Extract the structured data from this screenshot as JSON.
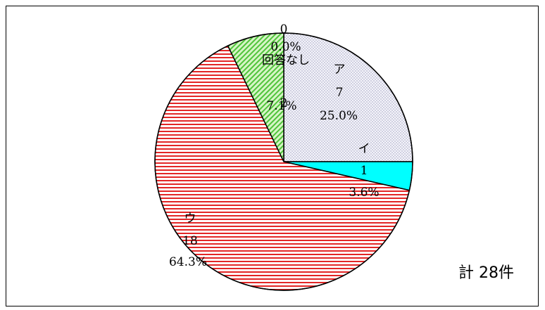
{
  "chart_data": {
    "type": "pie",
    "title": "",
    "slices": [
      {
        "label": "ア",
        "count": "7",
        "percent": "25.0%",
        "value": 7,
        "color": "#f4f4fa",
        "pattern": "dots"
      },
      {
        "label": "イ",
        "count": "1",
        "percent": "3.6%",
        "value": 1,
        "color": "#00ffff",
        "pattern": "solid"
      },
      {
        "label": "ウ",
        "count": "18",
        "percent": "64.3%",
        "value": 18,
        "color": "#ffffff",
        "pattern": "red-stripes"
      },
      {
        "label": "",
        "count": "2",
        "percent": "7.1%",
        "value": 2,
        "color": "#c8f0b4",
        "pattern": "green-diagonal"
      },
      {
        "label": "回答なし",
        "count": "0",
        "percent": "0.0%",
        "value": 0,
        "color": "#ffffff",
        "pattern": "none"
      }
    ],
    "total": 28
  },
  "total_label": "計 28件"
}
